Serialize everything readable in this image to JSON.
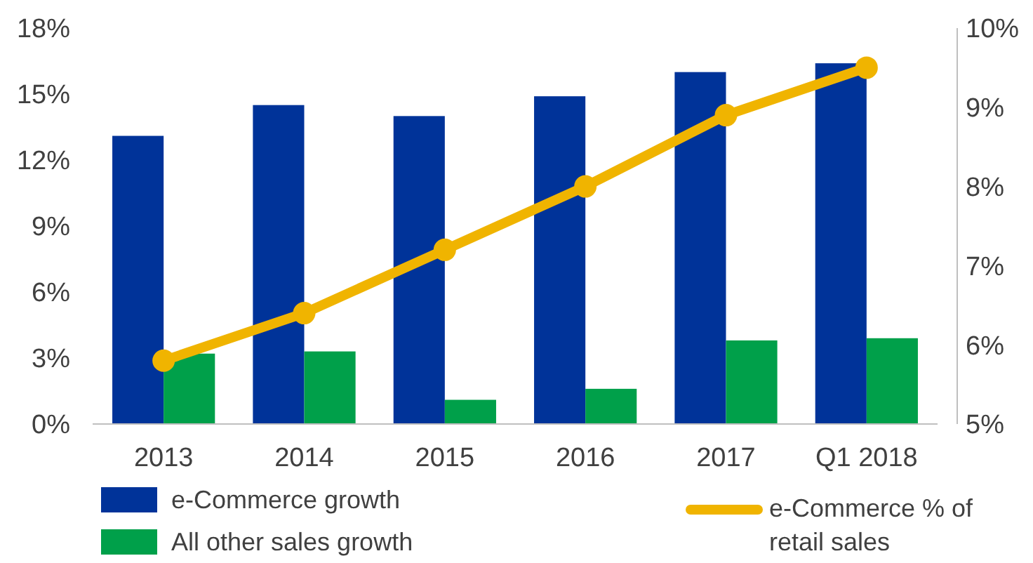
{
  "chart_data": {
    "type": "bar",
    "categories": [
      "2013",
      "2014",
      "2015",
      "2016",
      "2017",
      "Q1 2018"
    ],
    "series": [
      {
        "name": "e-Commerce growth",
        "color": "#003399",
        "values": [
          13.1,
          14.5,
          14.0,
          14.9,
          16.0,
          16.4
        ]
      },
      {
        "name": "All other sales growth",
        "color": "#00a04a",
        "values": [
          3.2,
          3.3,
          1.1,
          1.6,
          3.8,
          3.9
        ]
      },
      {
        "name": "e-Commerce % of retail sales",
        "type": "line",
        "axis": "y2",
        "color": "#f0b400",
        "marker": "circle",
        "values": [
          5.8,
          6.4,
          7.2,
          8.0,
          8.9,
          9.5
        ]
      }
    ],
    "ylim": [
      0,
      18
    ],
    "yticks": [
      {
        "value": 0,
        "label": "0%"
      },
      {
        "value": 3,
        "label": "3%"
      },
      {
        "value": 6,
        "label": "6%"
      },
      {
        "value": 9,
        "label": "9%"
      },
      {
        "value": 12,
        "label": "12%"
      },
      {
        "value": 15,
        "label": "15%"
      },
      {
        "value": 18,
        "label": "18%"
      }
    ],
    "y2lim": [
      5,
      10
    ],
    "y2ticks": [
      {
        "value": 5,
        "label": "5%"
      },
      {
        "value": 6,
        "label": "6%"
      },
      {
        "value": 7,
        "label": "7%"
      },
      {
        "value": 8,
        "label": "8%"
      },
      {
        "value": 9,
        "label": "9%"
      },
      {
        "value": 10,
        "label": "10%"
      }
    ],
    "grid": false,
    "legend": "bottom"
  }
}
